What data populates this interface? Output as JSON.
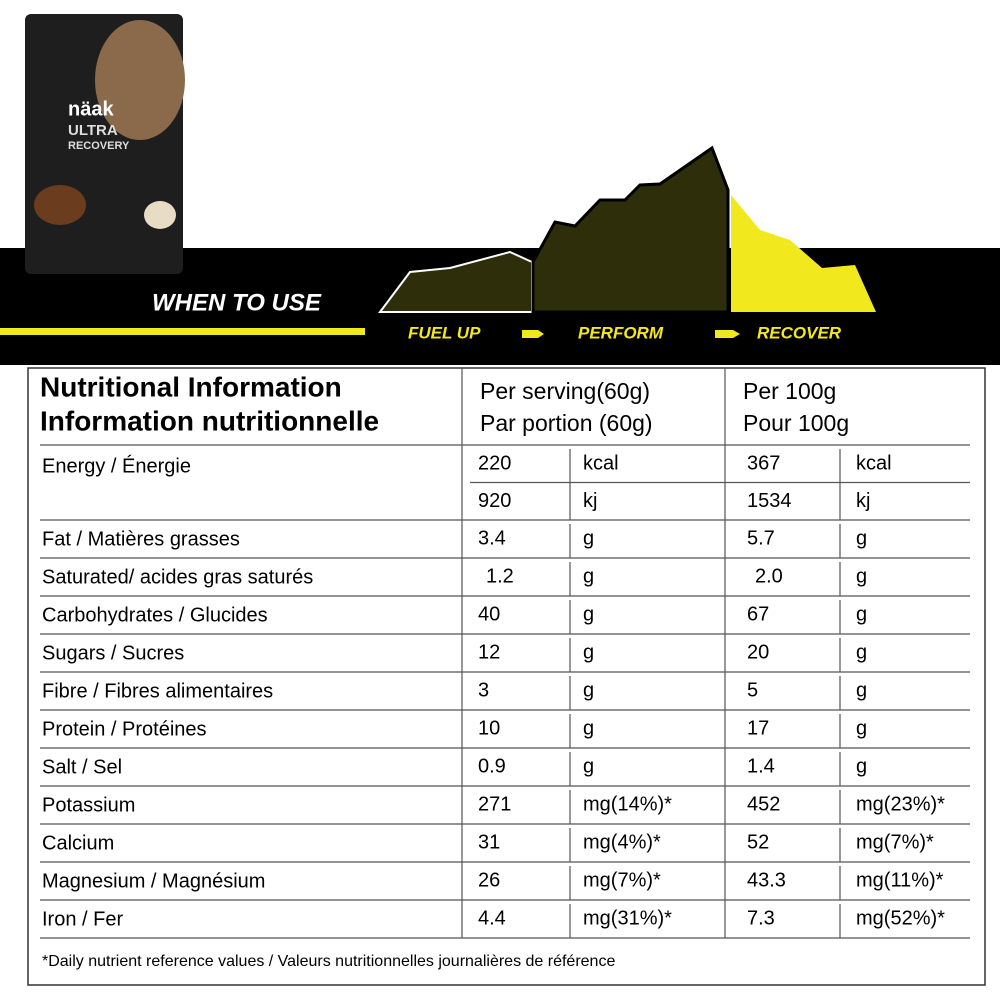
{
  "product": {
    "brand": "näak",
    "name_line1": "ULTRA",
    "name_line2": "RECOVERY"
  },
  "banner": {
    "title": "WHEN TO USE",
    "steps": [
      "FUEL UP",
      "PERFORM",
      "RECOVER"
    ]
  },
  "table": {
    "title_line1": "Nutritional Information",
    "title_line2": "Information nutritionnelle",
    "serving_line1": "Per serving(60g)",
    "serving_line2": "Par portion (60g)",
    "per100_line1": "Per 100g",
    "per100_line2": "Pour 100g",
    "rows": [
      {
        "label": "Energy / Énergie",
        "lines": [
          [
            "220",
            "kcal",
            "367",
            "kcal"
          ],
          [
            "920",
            "kj",
            "1534",
            "kj"
          ]
        ]
      },
      {
        "label": "Fat / Matières grasses",
        "lines": [
          [
            "3.4",
            "g",
            "5.7",
            "g"
          ]
        ]
      },
      {
        "label": "Saturated/ acides gras saturés",
        "lines": [
          [
            "1.2",
            "g",
            "2.0",
            "g"
          ]
        ]
      },
      {
        "label": "Carbohydrates / Glucides",
        "lines": [
          [
            "40",
            "g",
            "67",
            "g"
          ]
        ]
      },
      {
        "label": "Sugars / Sucres",
        "lines": [
          [
            "12",
            "g",
            "20",
            "g"
          ]
        ]
      },
      {
        "label": "Fibre / Fibres alimentaires",
        "lines": [
          [
            "3",
            "g",
            "5",
            "g"
          ]
        ]
      },
      {
        "label": "Protein / Protéines",
        "lines": [
          [
            "10",
            "g",
            "17",
            "g"
          ]
        ]
      },
      {
        "label": "Salt / Sel",
        "lines": [
          [
            "0.9",
            "g",
            "1.4",
            "g"
          ]
        ]
      },
      {
        "label": "Potassium",
        "lines": [
          [
            "271",
            "mg(14%)*",
            "452",
            "mg(23%)*"
          ]
        ]
      },
      {
        "label": "Calcium",
        "lines": [
          [
            "31",
            "mg(4%)*",
            "52",
            "mg(7%)*"
          ]
        ]
      },
      {
        "label": "Magnesium / Magnésium",
        "lines": [
          [
            "26",
            "mg(7%)*",
            "43.3",
            "mg(11%)*"
          ]
        ]
      },
      {
        "label": "Iron / Fer",
        "lines": [
          [
            "4.4",
            "mg(31%)*",
            "7.3",
            "mg(52%)*"
          ]
        ]
      }
    ],
    "footnote": "*Daily nutrient reference values / Valeurs nutritionnelles journalières de référence"
  }
}
